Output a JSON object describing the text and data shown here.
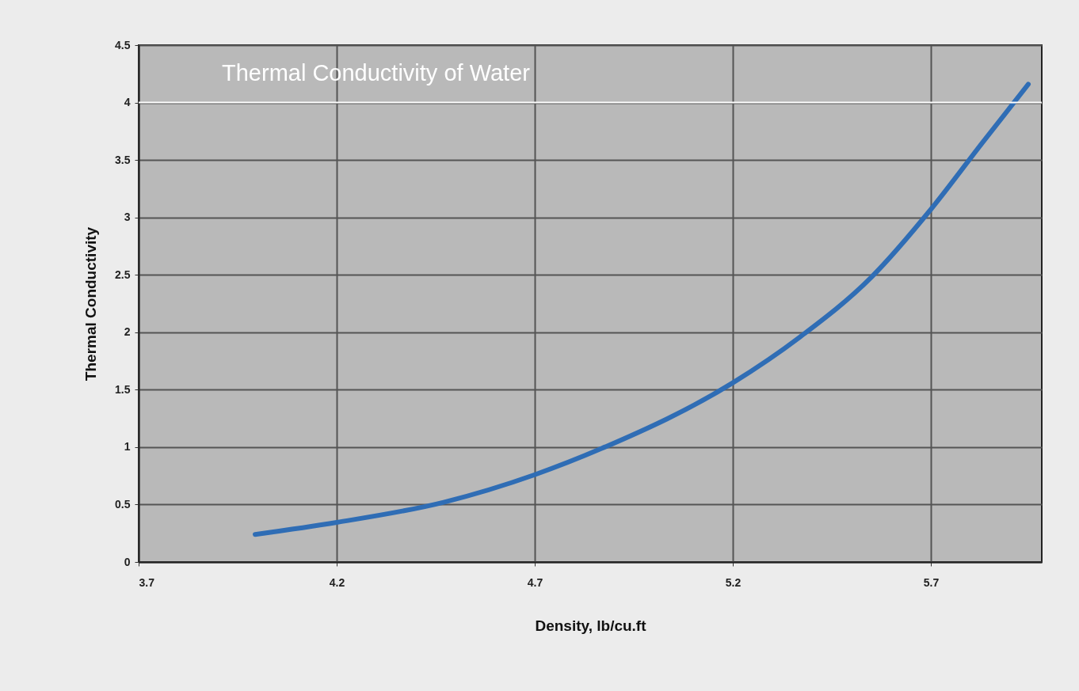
{
  "chart_data": {
    "type": "line",
    "title": "Thermal Conductivity of Water",
    "xlabel": "Density, lb/cu.ft",
    "ylabel": "Thermal Conductivity",
    "x": [
      3.994,
      4.2,
      4.47,
      4.7,
      4.87,
      5.2,
      5.37,
      5.55,
      5.7,
      5.83,
      5.946
    ],
    "series": [
      {
        "color": "#2f6db5",
        "values": [
          0.24,
          0.345,
          0.52,
          0.76,
          0.99,
          1.56,
          1.96,
          2.48,
          3.07,
          3.65,
          4.16
        ]
      }
    ],
    "xlim": [
      3.7,
      5.98
    ],
    "xticks": [
      3.7,
      4.2,
      4.7,
      5.2,
      5.7
    ],
    "ylim": [
      0,
      4.5
    ],
    "yticks": [
      0,
      0.5,
      1,
      1.5,
      2,
      2.5,
      3,
      3.5,
      4,
      4.5
    ],
    "ref_lines": [
      {
        "axis": "y",
        "value": 4,
        "color": "#ffffff"
      }
    ],
    "grid": true,
    "marker": "none",
    "line_style": "solid"
  }
}
